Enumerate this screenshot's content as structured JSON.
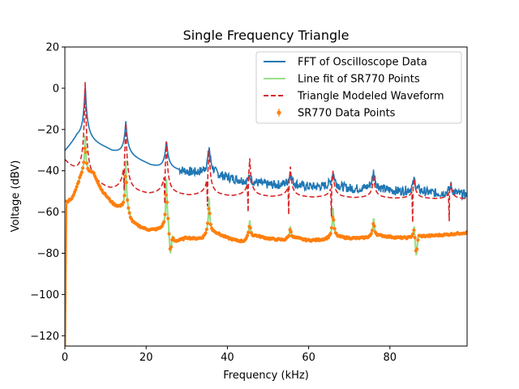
{
  "chart_data": {
    "type": "line",
    "title": "Single Frequency Triangle",
    "xlabel": "Frequency (kHz)",
    "ylabel": "Voltage (dBV)",
    "xlim": [
      0,
      99
    ],
    "ylim": [
      -125,
      20
    ],
    "x_ticks": [
      0,
      20,
      40,
      60,
      80
    ],
    "x_tick_labels": [
      "0",
      "20",
      "40",
      "60",
      "80"
    ],
    "y_ticks": [
      20,
      0,
      -20,
      -40,
      -60,
      -80,
      -100,
      -120
    ],
    "y_tick_labels": [
      "20",
      "0",
      "−20",
      "−40",
      "−60",
      "−80",
      "−100",
      "−120"
    ],
    "legend_position": "upper-right",
    "harmonics_khz": [
      5,
      15,
      25,
      35.5,
      45.5,
      55.5,
      66,
      76,
      86,
      95
    ],
    "series": [
      {
        "name": "FFT of Oscilloscope Data",
        "color": "#1f77b4",
        "style": "solid",
        "peaks": [
          {
            "x": 5,
            "y": 2
          },
          {
            "x": 15,
            "y": -16
          },
          {
            "x": 25,
            "y": -25
          },
          {
            "x": 35.5,
            "y": -28
          },
          {
            "x": 45.5,
            "y": -43
          },
          {
            "x": 55.5,
            "y": -41
          },
          {
            "x": 66,
            "y": -40
          },
          {
            "x": 76,
            "y": -40
          },
          {
            "x": 86,
            "y": -44
          },
          {
            "x": 95,
            "y": -47
          }
        ],
        "baseline": [
          {
            "x": 0,
            "y": -32
          },
          {
            "x": 3,
            "y": -26
          },
          {
            "x": 10,
            "y": -30
          },
          {
            "x": 14,
            "y": -33
          },
          {
            "x": 20,
            "y": -37
          },
          {
            "x": 24,
            "y": -40
          },
          {
            "x": 30,
            "y": -41
          },
          {
            "x": 40,
            "y": -44
          },
          {
            "x": 50,
            "y": -47
          },
          {
            "x": 60,
            "y": -48
          },
          {
            "x": 70,
            "y": -49
          },
          {
            "x": 80,
            "y": -50
          },
          {
            "x": 90,
            "y": -51
          },
          {
            "x": 99,
            "y": -52
          }
        ]
      },
      {
        "name": "Line fit of SR770 Points",
        "color": "#98df8a",
        "style": "solid"
      },
      {
        "name": "Triangle Modeled Waveform",
        "color": "#d62728",
        "style": "dashed",
        "peaks": [
          {
            "x": 5,
            "y": 3
          },
          {
            "x": 15,
            "y": -17
          },
          {
            "x": 25,
            "y": -26
          },
          {
            "x": 35.5,
            "y": -30
          },
          {
            "x": 45.5,
            "y": -34
          },
          {
            "x": 55.5,
            "y": -38
          },
          {
            "x": 66,
            "y": -40
          },
          {
            "x": 76,
            "y": -42
          },
          {
            "x": 86,
            "y": -44
          },
          {
            "x": 95,
            "y": -46
          }
        ],
        "dips": [
          {
            "x": 15,
            "y": -53
          },
          {
            "x": 25,
            "y": -60
          },
          {
            "x": 35.5,
            "y": -61
          },
          {
            "x": 45.5,
            "y": -64
          },
          {
            "x": 55.5,
            "y": -65
          },
          {
            "x": 66,
            "y": -66
          },
          {
            "x": 86,
            "y": -69
          },
          {
            "x": 95,
            "y": -68
          }
        ]
      },
      {
        "name": "SR770 Data Points",
        "color": "#ff7f0e",
        "style": "markers-errorbars",
        "peaks": [
          {
            "x": 5,
            "y": -23
          },
          {
            "x": 15,
            "y": -35
          },
          {
            "x": 25,
            "y": -44
          },
          {
            "x": 35.5,
            "y": -53
          },
          {
            "x": 45.5,
            "y": -64
          },
          {
            "x": 55.5,
            "y": -67
          },
          {
            "x": 66,
            "y": -58
          },
          {
            "x": 76,
            "y": -63
          },
          {
            "x": 86,
            "y": -67
          }
        ],
        "dips": [
          {
            "x": 26,
            "y": -80
          },
          {
            "x": 86.5,
            "y": -81
          }
        ],
        "baseline": [
          {
            "x": 0.5,
            "y": -56
          },
          {
            "x": 2,
            "y": -54
          },
          {
            "x": 4,
            "y": -44
          },
          {
            "x": 7,
            "y": -42
          },
          {
            "x": 9,
            "y": -50
          },
          {
            "x": 12,
            "y": -57
          },
          {
            "x": 14,
            "y": -60
          },
          {
            "x": 16.5,
            "y": -67
          },
          {
            "x": 20,
            "y": -69
          },
          {
            "x": 24,
            "y": -70
          },
          {
            "x": 27,
            "y": -76
          },
          {
            "x": 30,
            "y": -73
          },
          {
            "x": 34,
            "y": -74
          },
          {
            "x": 37,
            "y": -71
          },
          {
            "x": 40,
            "y": -73
          },
          {
            "x": 44,
            "y": -75
          },
          {
            "x": 47,
            "y": -72
          },
          {
            "x": 50,
            "y": -73
          },
          {
            "x": 54,
            "y": -74
          },
          {
            "x": 57,
            "y": -73
          },
          {
            "x": 60,
            "y": -74
          },
          {
            "x": 65,
            "y": -74
          },
          {
            "x": 68,
            "y": -73
          },
          {
            "x": 75,
            "y": -73
          },
          {
            "x": 78,
            "y": -72
          },
          {
            "x": 85,
            "y": -73
          },
          {
            "x": 88,
            "y": -72
          },
          {
            "x": 94,
            "y": -71
          },
          {
            "x": 99,
            "y": -70
          }
        ],
        "start_spike": {
          "x": 0,
          "y": -125
        }
      }
    ]
  }
}
